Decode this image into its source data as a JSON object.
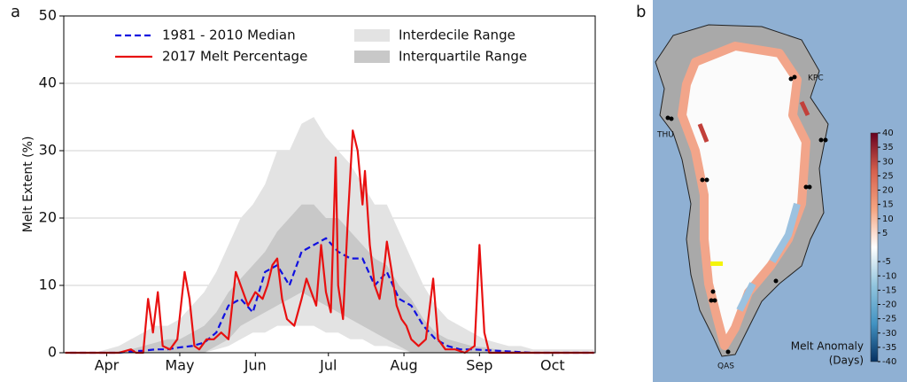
{
  "chart_data": [
    {
      "type": "line",
      "panel_label": "a",
      "ylabel": "Melt Extent (%)",
      "x": [
        90,
        95,
        100,
        105,
        110,
        115,
        120,
        125,
        130,
        135,
        140,
        145,
        150,
        155,
        160,
        165,
        170,
        175,
        180,
        185,
        190,
        195,
        200,
        205,
        210,
        215,
        220,
        225,
        230,
        235,
        240,
        245,
        250,
        255,
        260,
        265,
        270,
        275,
        280,
        285,
        290,
        295,
        300,
        305
      ],
      "xlim": [
        87.4,
        305.5
      ],
      "xticks": [
        {
          "value": 105,
          "label": "Apr"
        },
        {
          "value": 135,
          "label": "May"
        },
        {
          "value": 166,
          "label": "Jun"
        },
        {
          "value": 196,
          "label": "Jul"
        },
        {
          "value": 227,
          "label": "Aug"
        },
        {
          "value": 258,
          "label": "Sep"
        },
        {
          "value": 288,
          "label": "Oct"
        }
      ],
      "ylim": [
        0,
        50
      ],
      "yticks": [
        0,
        10,
        20,
        30,
        40,
        50
      ],
      "grid": true,
      "legend": "upper center",
      "series": [
        {
          "name": "Interdecile Range",
          "kind": "band",
          "color": "#e3e3e3",
          "lower": [
            0,
            0,
            0,
            0,
            0,
            0,
            0,
            0,
            0,
            0,
            0,
            0,
            0.5,
            1,
            2,
            3,
            3,
            4,
            4,
            4,
            4,
            3,
            3,
            2,
            2,
            1,
            1,
            0.5,
            0,
            0,
            0,
            0,
            0,
            0,
            0,
            0,
            0,
            0,
            0,
            0,
            0,
            0,
            0,
            0
          ],
          "upper": [
            0,
            0,
            0,
            0.5,
            1,
            2,
            3,
            4,
            4,
            5,
            7,
            9,
            12,
            16,
            20,
            22,
            25,
            30,
            30,
            34,
            35,
            32,
            30,
            28,
            25,
            22,
            22,
            18,
            14,
            10,
            7,
            5,
            4,
            3,
            2,
            1.5,
            1,
            1,
            0.5,
            0.5,
            0.5,
            0.5,
            0.5,
            0.5
          ]
        },
        {
          "name": "Interquartile Range",
          "kind": "band",
          "color": "#c8c8c8",
          "lower": [
            0,
            0,
            0,
            0,
            0,
            0,
            0,
            0,
            0,
            0,
            0,
            0,
            1,
            2,
            4,
            5,
            6,
            7,
            8,
            9,
            8,
            7,
            6,
            5,
            4,
            3,
            2,
            1,
            0,
            0,
            0,
            0,
            0,
            0,
            0,
            0,
            0,
            0,
            0,
            0,
            0,
            0,
            0,
            0
          ],
          "upper": [
            0,
            0,
            0,
            0,
            0.2,
            0.5,
            1,
            1.5,
            2,
            2,
            3,
            4,
            6,
            9,
            11,
            13,
            15,
            18,
            20,
            22,
            22,
            20,
            20,
            18,
            16,
            14,
            13,
            10,
            8,
            5,
            3,
            2,
            1.5,
            1,
            0.8,
            0.5,
            0.3,
            0.2,
            0,
            0,
            0,
            0,
            0,
            0
          ]
        },
        {
          "name": "1981 - 2010 Median",
          "kind": "line",
          "dash": true,
          "color": "#1010e0",
          "values": [
            0,
            0,
            0,
            0,
            0,
            0.2,
            0.3,
            0.5,
            0.5,
            0.8,
            1,
            1.5,
            3,
            7,
            8,
            6,
            12,
            13,
            10,
            15,
            16,
            17,
            15,
            14,
            14,
            10,
            12,
            8,
            7,
            4,
            2,
            1,
            0.5,
            0.5,
            0.4,
            0.3,
            0.2,
            0.1,
            0,
            0,
            0,
            0,
            0,
            0
          ]
        },
        {
          "name": "2017 Melt Percentage",
          "kind": "line",
          "dash": false,
          "color": "#e81010",
          "x": [
            88,
            100,
            110,
            115,
            117,
            120,
            122,
            124,
            126,
            128,
            131,
            134,
            137,
            139,
            141,
            143,
            146,
            149,
            152,
            155,
            158,
            160,
            163,
            166,
            169,
            171,
            173,
            175,
            177,
            179,
            182,
            185,
            187,
            189,
            191,
            193,
            195,
            197,
            199,
            200,
            202,
            204,
            206,
            208,
            210,
            211,
            213,
            215,
            217,
            219,
            220,
            222,
            224,
            226,
            228,
            230,
            233,
            236,
            239,
            241,
            244,
            248,
            252,
            256,
            258,
            260,
            262,
            270,
            280,
            290,
            305
          ],
          "values": [
            0,
            0,
            0,
            0.5,
            0,
            0,
            8,
            3,
            9,
            1,
            0.5,
            2,
            12,
            8,
            1,
            0.5,
            2,
            2,
            3,
            2,
            12,
            10,
            7,
            9,
            8,
            10,
            13,
            14,
            8,
            5,
            4,
            8,
            11,
            9,
            7,
            16,
            9,
            6,
            29,
            10,
            5,
            20,
            33,
            30,
            22,
            27,
            16,
            10,
            8,
            13,
            16.5,
            12,
            7,
            5,
            4,
            2,
            1,
            2,
            11,
            2,
            0.5,
            0.5,
            0,
            1,
            16,
            3,
            0,
            0,
            0,
            0,
            0
          ]
        }
      ]
    },
    {
      "type": "map",
      "panel_label": "b",
      "stations": [
        "KPC",
        "THU",
        "QAS"
      ],
      "colorbar_label": [
        "Melt Anomaly",
        "(Days)"
      ],
      "clim": [
        -40,
        40
      ],
      "cticks": [
        40,
        35,
        30,
        25,
        20,
        15,
        10,
        5,
        -5,
        -10,
        -15,
        -20,
        -25,
        -30,
        -35,
        -40
      ],
      "colormap": [
        "#67001f",
        "#d6604d",
        "#f4a582",
        "#ffffff",
        "#92c5de",
        "#4393c3",
        "#053061"
      ]
    }
  ]
}
